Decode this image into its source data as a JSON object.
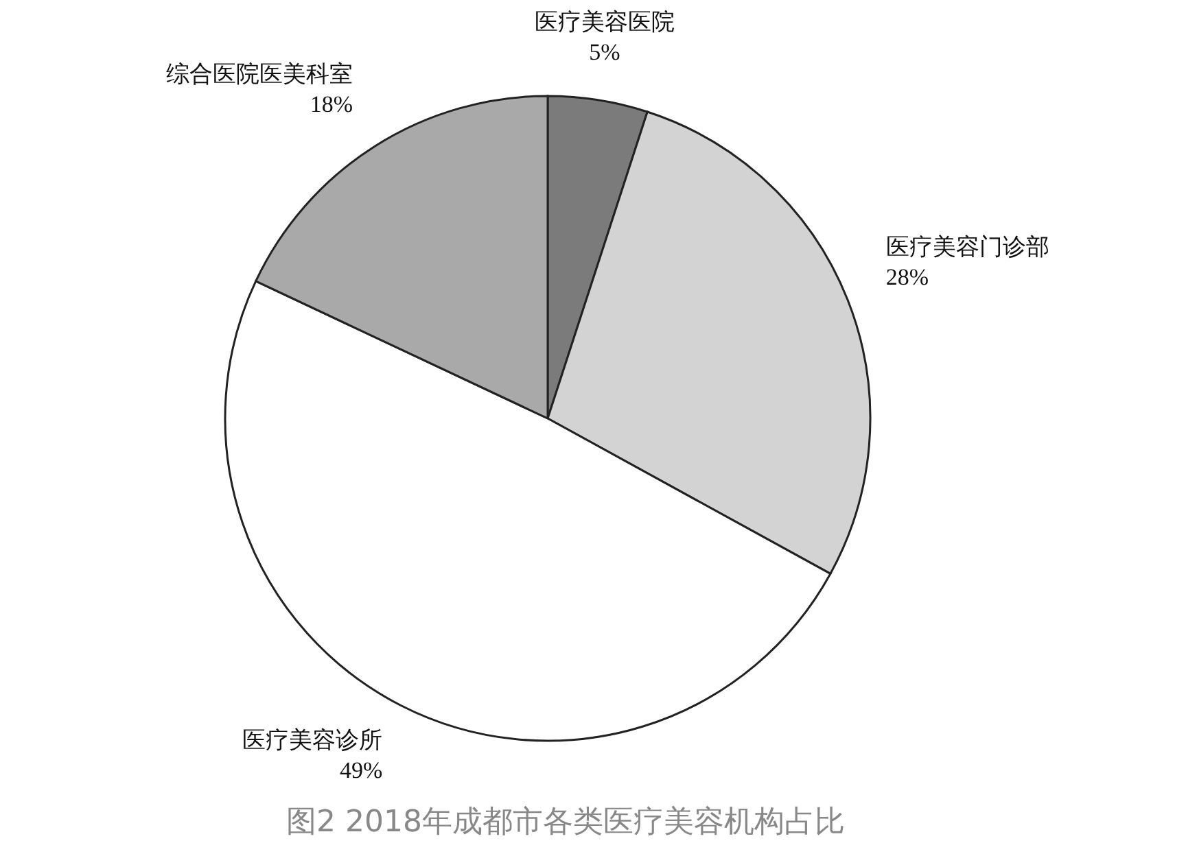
{
  "chart_data": {
    "type": "pie",
    "title": "图2 2018年成都市各类医疗美容机构占比",
    "categories": [
      "医疗美容医院",
      "医疗美容门诊部",
      "医疗美容诊所",
      "综合医院医美科室"
    ],
    "values": [
      5,
      28,
      49,
      18
    ],
    "colors": [
      "#7b7b7b",
      "#d3d3d3",
      "#ffffff",
      "#a9a9a9"
    ],
    "value_labels": [
      "5%",
      "28%",
      "49%",
      "18%"
    ]
  }
}
